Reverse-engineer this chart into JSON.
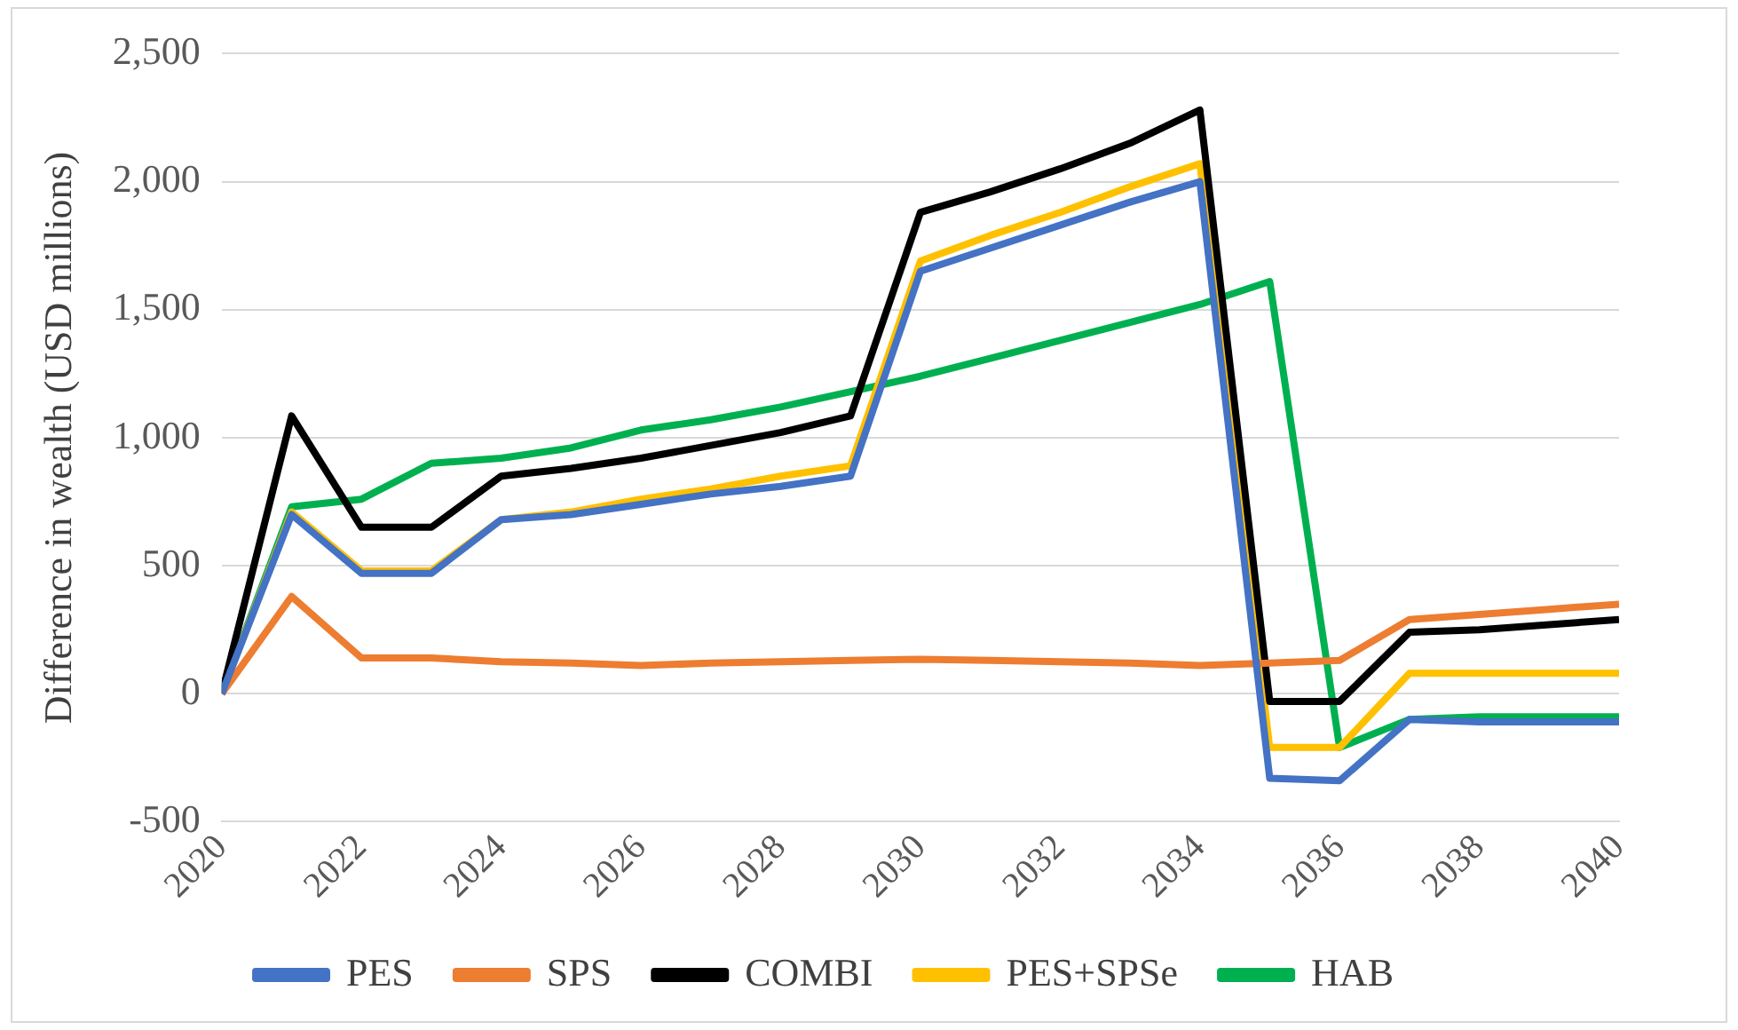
{
  "chart_data": {
    "type": "line",
    "ylabel": "Difference in wealth (USD millions)",
    "x": [
      2020,
      2021,
      2022,
      2023,
      2024,
      2025,
      2026,
      2027,
      2028,
      2029,
      2030,
      2031,
      2032,
      2033,
      2034,
      2035,
      2036,
      2037,
      2038,
      2039,
      2040
    ],
    "xlim": [
      2020,
      2040
    ],
    "xticks": [
      2020,
      2022,
      2024,
      2026,
      2028,
      2030,
      2032,
      2034,
      2036,
      2038,
      2040
    ],
    "ylim": [
      -500,
      2500
    ],
    "yticks": [
      {
        "value": -500,
        "label": "-500"
      },
      {
        "value": 0,
        "label": "0"
      },
      {
        "value": 500,
        "label": "500"
      },
      {
        "value": 1000,
        "label": "1,000"
      },
      {
        "value": 1500,
        "label": "1,500"
      },
      {
        "value": 2000,
        "label": "2,000"
      },
      {
        "value": 2500,
        "label": "2,500"
      }
    ],
    "grid": "y",
    "legend": "bottom",
    "marker": "none",
    "line_style": "solid",
    "series": [
      {
        "name": "PES",
        "color": "#4472c4",
        "values": [
          0,
          700,
          470,
          470,
          680,
          700,
          740,
          780,
          810,
          850,
          1650,
          1740,
          1830,
          1920,
          2000,
          -330,
          -340,
          -100,
          -110,
          -110,
          -110
        ]
      },
      {
        "name": "SPS",
        "color": "#ed7d31",
        "values": [
          0,
          380,
          140,
          140,
          125,
          120,
          110,
          120,
          125,
          130,
          135,
          130,
          125,
          120,
          110,
          120,
          130,
          290,
          310,
          330,
          350
        ]
      },
      {
        "name": "COMBI",
        "color": "#000000",
        "values": [
          0,
          1085,
          650,
          650,
          850,
          880,
          920,
          970,
          1020,
          1085,
          1880,
          1960,
          2050,
          2150,
          2280,
          -30,
          -30,
          240,
          250,
          270,
          290
        ]
      },
      {
        "name": "PES+SPSe",
        "color": "#ffc000",
        "values": [
          0,
          710,
          480,
          480,
          680,
          710,
          760,
          800,
          850,
          890,
          1690,
          1790,
          1880,
          1980,
          2070,
          -210,
          -210,
          80,
          80,
          80,
          80
        ]
      },
      {
        "name": "HAB",
        "color": "#00b050",
        "values": [
          0,
          730,
          760,
          900,
          920,
          960,
          1030,
          1070,
          1120,
          1180,
          1240,
          1310,
          1380,
          1450,
          1520,
          1610,
          -210,
          -100,
          -90,
          -90,
          -90
        ]
      }
    ]
  }
}
